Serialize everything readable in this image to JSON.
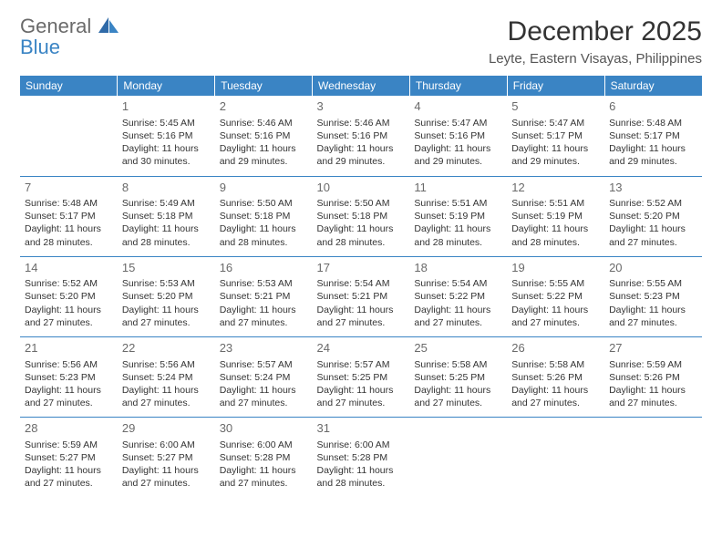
{
  "logo": {
    "word1": "General",
    "word2": "Blue"
  },
  "title": "December 2025",
  "location": "Leyte, Eastern Visayas, Philippines",
  "colors": {
    "header_bg": "#3a84c4",
    "header_text": "#ffffff",
    "row_border": "#3a84c4",
    "body_text": "#333333",
    "daynum_text": "#6a6a6a",
    "logo_gray": "#6a6a6a",
    "logo_blue": "#3a84c4",
    "background": "#ffffff"
  },
  "day_headers": [
    "Sunday",
    "Monday",
    "Tuesday",
    "Wednesday",
    "Thursday",
    "Friday",
    "Saturday"
  ],
  "weeks": [
    [
      {
        "n": "",
        "sr": "",
        "ss": "",
        "dl": ""
      },
      {
        "n": "1",
        "sr": "Sunrise: 5:45 AM",
        "ss": "Sunset: 5:16 PM",
        "dl": "Daylight: 11 hours and 30 minutes."
      },
      {
        "n": "2",
        "sr": "Sunrise: 5:46 AM",
        "ss": "Sunset: 5:16 PM",
        "dl": "Daylight: 11 hours and 29 minutes."
      },
      {
        "n": "3",
        "sr": "Sunrise: 5:46 AM",
        "ss": "Sunset: 5:16 PM",
        "dl": "Daylight: 11 hours and 29 minutes."
      },
      {
        "n": "4",
        "sr": "Sunrise: 5:47 AM",
        "ss": "Sunset: 5:16 PM",
        "dl": "Daylight: 11 hours and 29 minutes."
      },
      {
        "n": "5",
        "sr": "Sunrise: 5:47 AM",
        "ss": "Sunset: 5:17 PM",
        "dl": "Daylight: 11 hours and 29 minutes."
      },
      {
        "n": "6",
        "sr": "Sunrise: 5:48 AM",
        "ss": "Sunset: 5:17 PM",
        "dl": "Daylight: 11 hours and 29 minutes."
      }
    ],
    [
      {
        "n": "7",
        "sr": "Sunrise: 5:48 AM",
        "ss": "Sunset: 5:17 PM",
        "dl": "Daylight: 11 hours and 28 minutes."
      },
      {
        "n": "8",
        "sr": "Sunrise: 5:49 AM",
        "ss": "Sunset: 5:18 PM",
        "dl": "Daylight: 11 hours and 28 minutes."
      },
      {
        "n": "9",
        "sr": "Sunrise: 5:50 AM",
        "ss": "Sunset: 5:18 PM",
        "dl": "Daylight: 11 hours and 28 minutes."
      },
      {
        "n": "10",
        "sr": "Sunrise: 5:50 AM",
        "ss": "Sunset: 5:18 PM",
        "dl": "Daylight: 11 hours and 28 minutes."
      },
      {
        "n": "11",
        "sr": "Sunrise: 5:51 AM",
        "ss": "Sunset: 5:19 PM",
        "dl": "Daylight: 11 hours and 28 minutes."
      },
      {
        "n": "12",
        "sr": "Sunrise: 5:51 AM",
        "ss": "Sunset: 5:19 PM",
        "dl": "Daylight: 11 hours and 28 minutes."
      },
      {
        "n": "13",
        "sr": "Sunrise: 5:52 AM",
        "ss": "Sunset: 5:20 PM",
        "dl": "Daylight: 11 hours and 27 minutes."
      }
    ],
    [
      {
        "n": "14",
        "sr": "Sunrise: 5:52 AM",
        "ss": "Sunset: 5:20 PM",
        "dl": "Daylight: 11 hours and 27 minutes."
      },
      {
        "n": "15",
        "sr": "Sunrise: 5:53 AM",
        "ss": "Sunset: 5:20 PM",
        "dl": "Daylight: 11 hours and 27 minutes."
      },
      {
        "n": "16",
        "sr": "Sunrise: 5:53 AM",
        "ss": "Sunset: 5:21 PM",
        "dl": "Daylight: 11 hours and 27 minutes."
      },
      {
        "n": "17",
        "sr": "Sunrise: 5:54 AM",
        "ss": "Sunset: 5:21 PM",
        "dl": "Daylight: 11 hours and 27 minutes."
      },
      {
        "n": "18",
        "sr": "Sunrise: 5:54 AM",
        "ss": "Sunset: 5:22 PM",
        "dl": "Daylight: 11 hours and 27 minutes."
      },
      {
        "n": "19",
        "sr": "Sunrise: 5:55 AM",
        "ss": "Sunset: 5:22 PM",
        "dl": "Daylight: 11 hours and 27 minutes."
      },
      {
        "n": "20",
        "sr": "Sunrise: 5:55 AM",
        "ss": "Sunset: 5:23 PM",
        "dl": "Daylight: 11 hours and 27 minutes."
      }
    ],
    [
      {
        "n": "21",
        "sr": "Sunrise: 5:56 AM",
        "ss": "Sunset: 5:23 PM",
        "dl": "Daylight: 11 hours and 27 minutes."
      },
      {
        "n": "22",
        "sr": "Sunrise: 5:56 AM",
        "ss": "Sunset: 5:24 PM",
        "dl": "Daylight: 11 hours and 27 minutes."
      },
      {
        "n": "23",
        "sr": "Sunrise: 5:57 AM",
        "ss": "Sunset: 5:24 PM",
        "dl": "Daylight: 11 hours and 27 minutes."
      },
      {
        "n": "24",
        "sr": "Sunrise: 5:57 AM",
        "ss": "Sunset: 5:25 PM",
        "dl": "Daylight: 11 hours and 27 minutes."
      },
      {
        "n": "25",
        "sr": "Sunrise: 5:58 AM",
        "ss": "Sunset: 5:25 PM",
        "dl": "Daylight: 11 hours and 27 minutes."
      },
      {
        "n": "26",
        "sr": "Sunrise: 5:58 AM",
        "ss": "Sunset: 5:26 PM",
        "dl": "Daylight: 11 hours and 27 minutes."
      },
      {
        "n": "27",
        "sr": "Sunrise: 5:59 AM",
        "ss": "Sunset: 5:26 PM",
        "dl": "Daylight: 11 hours and 27 minutes."
      }
    ],
    [
      {
        "n": "28",
        "sr": "Sunrise: 5:59 AM",
        "ss": "Sunset: 5:27 PM",
        "dl": "Daylight: 11 hours and 27 minutes."
      },
      {
        "n": "29",
        "sr": "Sunrise: 6:00 AM",
        "ss": "Sunset: 5:27 PM",
        "dl": "Daylight: 11 hours and 27 minutes."
      },
      {
        "n": "30",
        "sr": "Sunrise: 6:00 AM",
        "ss": "Sunset: 5:28 PM",
        "dl": "Daylight: 11 hours and 27 minutes."
      },
      {
        "n": "31",
        "sr": "Sunrise: 6:00 AM",
        "ss": "Sunset: 5:28 PM",
        "dl": "Daylight: 11 hours and 28 minutes."
      },
      {
        "n": "",
        "sr": "",
        "ss": "",
        "dl": ""
      },
      {
        "n": "",
        "sr": "",
        "ss": "",
        "dl": ""
      },
      {
        "n": "",
        "sr": "",
        "ss": "",
        "dl": ""
      }
    ]
  ]
}
